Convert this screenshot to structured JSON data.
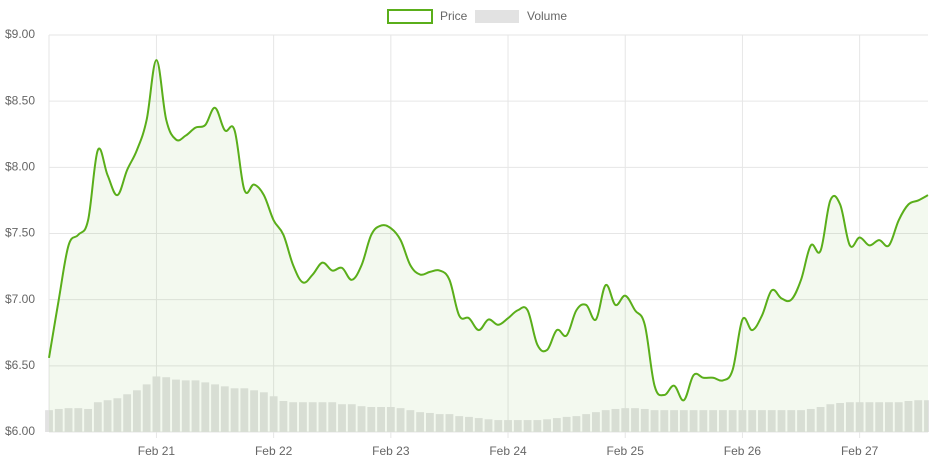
{
  "chart_data": {
    "type": "line",
    "categories": [
      null,
      null,
      null,
      null,
      null,
      null,
      null,
      null,
      null,
      null,
      null,
      "Feb 21",
      null,
      null,
      null,
      null,
      null,
      null,
      null,
      null,
      null,
      null,
      null,
      "Feb 22",
      null,
      null,
      null,
      null,
      null,
      null,
      null,
      null,
      null,
      null,
      null,
      "Feb 23",
      null,
      null,
      null,
      null,
      null,
      null,
      null,
      null,
      null,
      null,
      null,
      "Feb 24",
      null,
      null,
      null,
      null,
      null,
      null,
      null,
      null,
      null,
      null,
      null,
      "Feb 25",
      null,
      null,
      null,
      null,
      null,
      null,
      null,
      null,
      null,
      null,
      null,
      "Feb 26",
      null,
      null,
      null,
      null,
      null,
      null,
      null,
      null,
      null,
      null,
      null,
      "Feb 27",
      null,
      null,
      null,
      null,
      null,
      null,
      null
    ],
    "series": [
      {
        "name": "Price",
        "type": "line",
        "color": "#5aae1a",
        "axis": "y",
        "values": [
          6.56,
          7.0,
          7.41,
          7.49,
          7.6,
          8.13,
          7.94,
          7.79,
          7.98,
          8.13,
          8.36,
          8.81,
          8.36,
          8.21,
          8.24,
          8.3,
          8.32,
          8.45,
          8.28,
          8.28,
          7.83,
          7.87,
          7.79,
          7.6,
          7.49,
          7.26,
          7.13,
          7.19,
          7.28,
          7.22,
          7.24,
          7.15,
          7.26,
          7.49,
          7.56,
          7.54,
          7.45,
          7.26,
          7.19,
          7.21,
          7.22,
          7.15,
          6.88,
          6.86,
          6.77,
          6.85,
          6.81,
          6.86,
          6.92,
          6.92,
          6.66,
          6.62,
          6.77,
          6.73,
          6.92,
          6.96,
          6.85,
          7.11,
          6.96,
          7.03,
          6.92,
          6.81,
          6.35,
          6.28,
          6.35,
          6.24,
          6.43,
          6.41,
          6.41,
          6.39,
          6.47,
          6.85,
          6.77,
          6.88,
          7.07,
          7.01,
          7.0,
          7.15,
          7.41,
          7.37,
          7.75,
          7.72,
          7.41,
          7.47,
          7.41,
          7.45,
          7.41,
          7.6,
          7.72,
          7.75,
          7.79
        ]
      },
      {
        "name": "Volume",
        "type": "bar",
        "color": "#e2e2e2",
        "axis": "y2",
        "values": [
          5.5,
          5.8,
          6.0,
          6.0,
          5.8,
          7.5,
          8.0,
          8.5,
          9.5,
          10.5,
          12.0,
          14.0,
          13.8,
          13.2,
          13.0,
          13.0,
          12.5,
          12.0,
          11.5,
          11.0,
          11.0,
          10.5,
          10.0,
          9.0,
          7.8,
          7.5,
          7.5,
          7.5,
          7.5,
          7.5,
          7.0,
          7.0,
          6.5,
          6.3,
          6.3,
          6.3,
          6.0,
          5.5,
          5.0,
          4.8,
          4.5,
          4.5,
          4.0,
          3.8,
          3.5,
          3.2,
          3.0,
          3.0,
          3.0,
          3.0,
          3.0,
          3.2,
          3.5,
          3.8,
          4.0,
          4.5,
          5.0,
          5.5,
          5.8,
          6.0,
          6.0,
          5.8,
          5.5,
          5.5,
          5.5,
          5.5,
          5.5,
          5.5,
          5.5,
          5.5,
          5.5,
          5.5,
          5.5,
          5.5,
          5.5,
          5.5,
          5.5,
          5.5,
          5.8,
          6.3,
          7.0,
          7.3,
          7.5,
          7.5,
          7.5,
          7.5,
          7.5,
          7.5,
          7.8,
          8.0,
          8.0
        ]
      }
    ],
    "ylim": [
      6,
      9
    ],
    "yticks": [
      {
        "value": 6,
        "label": "$6.00"
      },
      {
        "value": 6.5,
        "label": "$6.50"
      },
      {
        "value": 7,
        "label": "$7.00"
      },
      {
        "value": 7.5,
        "label": "$7.50"
      },
      {
        "value": 8,
        "label": "$8.00"
      },
      {
        "value": 8.5,
        "label": "$8.50"
      },
      {
        "value": 9,
        "label": "$9.00"
      }
    ],
    "y2lim": [
      0,
      100
    ],
    "grid": true,
    "legend": "top"
  }
}
